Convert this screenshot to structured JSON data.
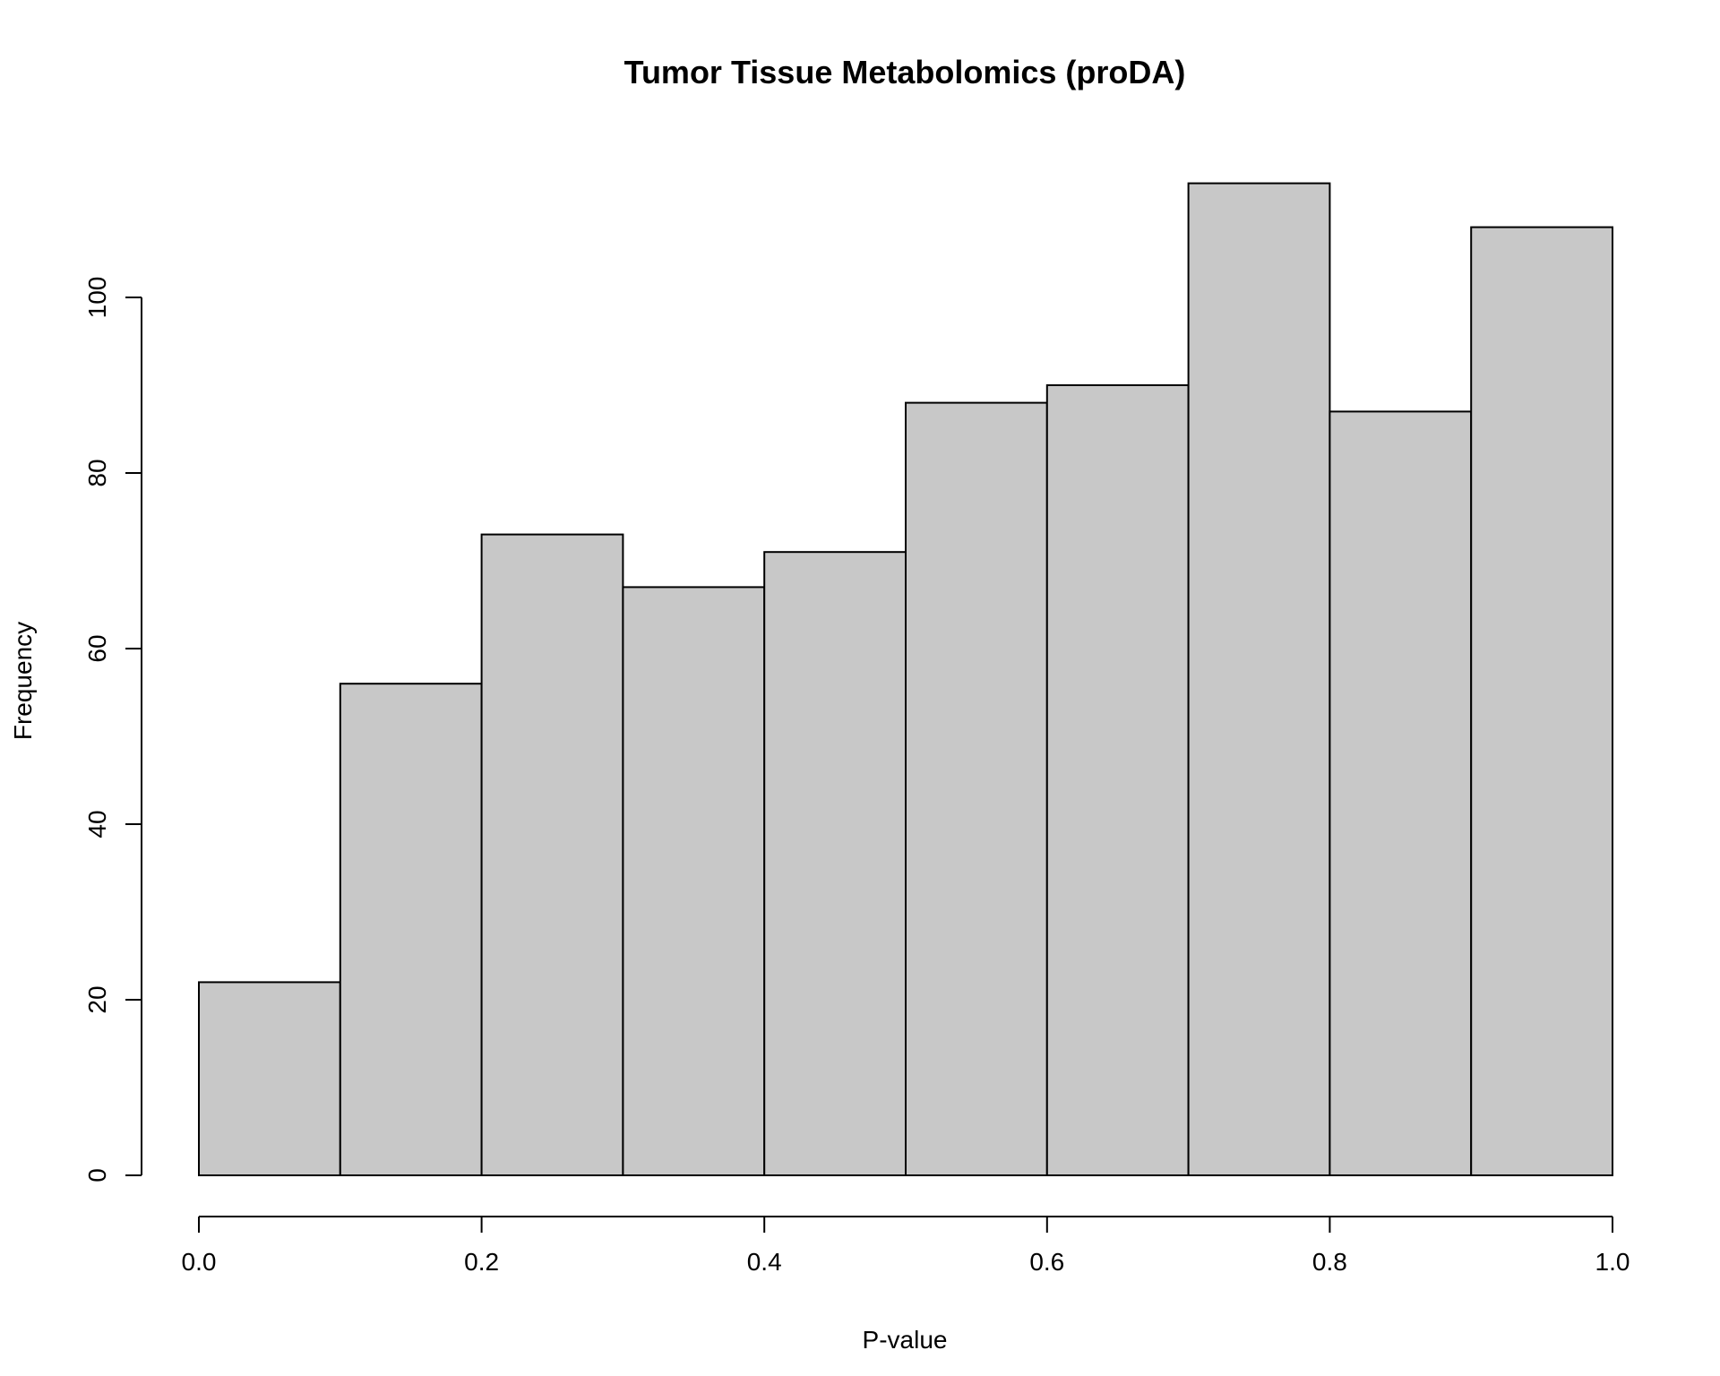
{
  "chart_data": {
    "type": "bar",
    "subtype": "histogram",
    "title": "Tumor Tissue Metabolomics (proDA)",
    "xlabel": "P-value",
    "ylabel": "Frequency",
    "bin_edges": [
      0.0,
      0.1,
      0.2,
      0.3,
      0.4,
      0.5,
      0.6,
      0.7,
      0.8,
      0.9,
      1.0
    ],
    "values": [
      22,
      56,
      73,
      67,
      71,
      88,
      90,
      113,
      87,
      108
    ],
    "xlim": [
      0.0,
      1.0
    ],
    "ylim": [
      0,
      113
    ],
    "x_ticks": [
      0.0,
      0.2,
      0.4,
      0.6,
      0.8,
      1.0
    ],
    "x_tick_labels": [
      "0.0",
      "0.2",
      "0.4",
      "0.6",
      "0.8",
      "1.0"
    ],
    "y_ticks": [
      0,
      20,
      40,
      60,
      80,
      100
    ],
    "y_tick_labels": [
      "0",
      "20",
      "40",
      "60",
      "80",
      "100"
    ],
    "bar_color": "#c8c8c8",
    "edge_color": "#000000",
    "grid": false,
    "legend": "none"
  }
}
